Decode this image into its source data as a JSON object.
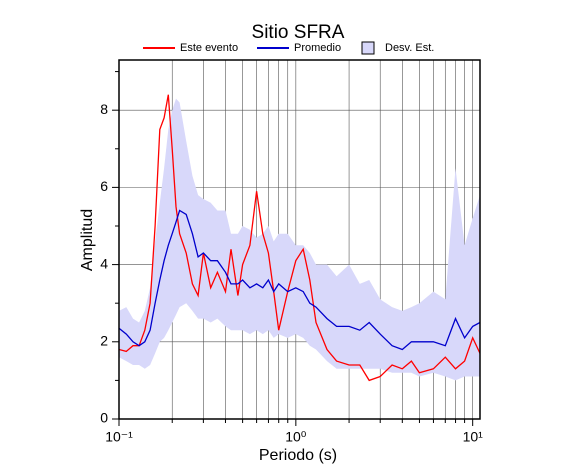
{
  "chart_data": {
    "type": "line",
    "title": "Sitio SFRA",
    "x_label": "Periodo (s)",
    "y_label": "Amplitud",
    "x": [
      0.1,
      0.11,
      0.12,
      0.13,
      0.14,
      0.15,
      0.16,
      0.17,
      0.18,
      0.19,
      0.2,
      0.21,
      0.22,
      0.24,
      0.26,
      0.28,
      0.3,
      0.33,
      0.36,
      0.4,
      0.43,
      0.47,
      0.5,
      0.55,
      0.6,
      0.65,
      0.7,
      0.75,
      0.8,
      0.9,
      1.0,
      1.1,
      1.2,
      1.3,
      1.5,
      1.7,
      2.0,
      2.3,
      2.6,
      3.0,
      3.5,
      4.0,
      4.5,
      5.0,
      6.0,
      7.0,
      8.0,
      9.0,
      10.0,
      11.0
    ],
    "series": [
      {
        "name": "Desv. Est.",
        "color": "#d8d8fa",
        "kind": "band",
        "lower": [
          1.6,
          1.5,
          1.4,
          1.4,
          1.3,
          1.4,
          1.7,
          2.0,
          2.1,
          2.3,
          2.5,
          2.7,
          2.9,
          3.0,
          2.8,
          2.6,
          2.6,
          2.5,
          2.6,
          2.4,
          2.3,
          2.3,
          2.3,
          2.2,
          2.3,
          2.2,
          2.3,
          2.1,
          2.2,
          2.1,
          2.2,
          2.1,
          1.9,
          1.8,
          1.5,
          1.3,
          1.3,
          1.3,
          1.3,
          1.3,
          1.2,
          1.2,
          1.2,
          1.1,
          1.2,
          1.1,
          1.0,
          1.1,
          1.1,
          1.1
        ],
        "upper": [
          2.8,
          2.9,
          2.6,
          2.5,
          2.8,
          3.4,
          4.6,
          5.6,
          6.5,
          7.5,
          8.0,
          8.3,
          8.2,
          7.2,
          6.3,
          5.8,
          5.7,
          5.6,
          5.4,
          5.4,
          4.8,
          4.8,
          5.0,
          4.9,
          4.7,
          4.8,
          5.0,
          4.6,
          4.8,
          4.8,
          4.5,
          4.5,
          4.3,
          4.0,
          4.0,
          3.7,
          4.0,
          3.5,
          3.6,
          3.1,
          2.9,
          2.8,
          2.9,
          3.0,
          3.3,
          3.1,
          6.5,
          4.5,
          5.2,
          5.8
        ]
      },
      {
        "name": "Este evento",
        "color": "#ff0000",
        "kind": "line",
        "values": [
          1.8,
          1.75,
          1.9,
          1.9,
          2.3,
          3.0,
          5.0,
          7.5,
          7.8,
          8.4,
          7.0,
          5.5,
          4.8,
          4.3,
          3.5,
          3.2,
          4.3,
          3.4,
          3.8,
          3.3,
          4.4,
          3.2,
          4.0,
          4.5,
          5.9,
          4.8,
          4.3,
          3.3,
          2.3,
          3.3,
          4.1,
          4.4,
          3.6,
          2.5,
          1.8,
          1.5,
          1.4,
          1.4,
          1.0,
          1.1,
          1.4,
          1.3,
          1.5,
          1.2,
          1.3,
          1.6,
          1.3,
          1.5,
          2.1,
          1.7
        ]
      },
      {
        "name": "Promedio",
        "color": "#0000cc",
        "kind": "line",
        "values": [
          2.35,
          2.2,
          2.0,
          1.9,
          2.0,
          2.3,
          3.0,
          3.6,
          4.1,
          4.5,
          4.8,
          5.1,
          5.4,
          5.3,
          4.8,
          4.2,
          4.3,
          4.1,
          4.1,
          3.8,
          3.5,
          3.5,
          3.6,
          3.4,
          3.5,
          3.4,
          3.6,
          3.3,
          3.5,
          3.3,
          3.4,
          3.3,
          3.0,
          2.9,
          2.6,
          2.4,
          2.4,
          2.3,
          2.5,
          2.2,
          1.9,
          1.8,
          2.0,
          2.0,
          2.0,
          1.9,
          2.6,
          2.1,
          2.4,
          2.5
        ]
      }
    ],
    "x_log": true,
    "grid": true,
    "xlim": [
      0.1,
      11
    ],
    "ylim": [
      0,
      9.3
    ],
    "xticks": [
      {
        "value": 0.1,
        "label": "10⁻¹"
      },
      {
        "value": 1,
        "label": "10⁰"
      },
      {
        "value": 10,
        "label": "10¹"
      }
    ],
    "xminor_ticks": [
      0.2,
      0.3,
      0.4,
      0.5,
      0.6,
      0.7,
      0.8,
      0.9,
      2,
      3,
      4,
      5,
      6,
      7,
      8,
      9
    ],
    "yticks": [
      0,
      2,
      4,
      6,
      8
    ],
    "yminor_ticks": [
      1,
      3,
      5,
      7,
      9
    ]
  }
}
